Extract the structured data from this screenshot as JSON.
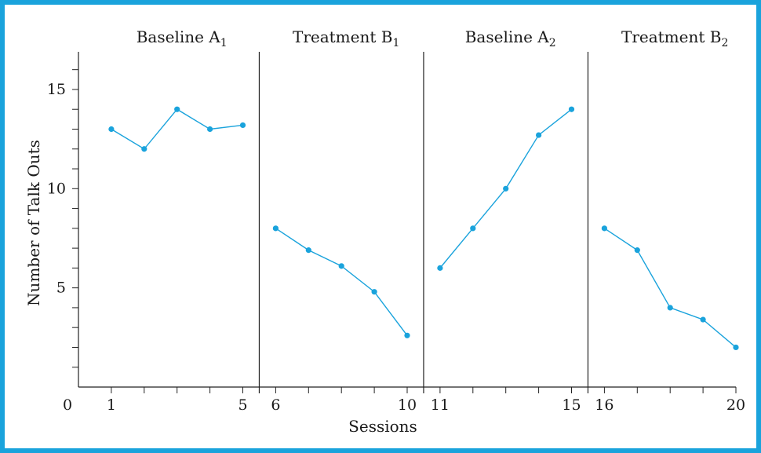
{
  "chart_data": {
    "type": "line",
    "xlabel": "Sessions",
    "ylabel": "Number of Talk Outs",
    "xlim": [
      0,
      20
    ],
    "ylim": [
      0,
      17
    ],
    "x_ticks": [
      1,
      2,
      3,
      4,
      5,
      6,
      7,
      8,
      9,
      10,
      11,
      12,
      13,
      14,
      15,
      16,
      17,
      18,
      19,
      20
    ],
    "x_tick_labels": [
      {
        "x": 0,
        "label": "0"
      },
      {
        "x": 1,
        "label": "1"
      },
      {
        "x": 5,
        "label": "5"
      },
      {
        "x": 6,
        "label": "6"
      },
      {
        "x": 10,
        "label": "10"
      },
      {
        "x": 11,
        "label": "11"
      },
      {
        "x": 15,
        "label": "15"
      },
      {
        "x": 16,
        "label": "16"
      },
      {
        "x": 20,
        "label": "20"
      }
    ],
    "y_ticks": [
      1,
      2,
      3,
      4,
      5,
      6,
      7,
      8,
      9,
      10,
      11,
      12,
      13,
      14,
      15,
      16
    ],
    "y_tick_labels": [
      {
        "y": 5,
        "label": "5"
      },
      {
        "y": 10,
        "label": "10"
      },
      {
        "y": 15,
        "label": "15"
      }
    ],
    "phase_dividers": [
      5.5,
      10.5,
      15.5
    ],
    "grid": false,
    "series": [
      {
        "phase": "Baseline",
        "letter": "A",
        "subscript": "1",
        "x": [
          1,
          2,
          3,
          4,
          5
        ],
        "values": [
          13,
          12,
          14,
          13,
          13.2
        ]
      },
      {
        "phase": "Treatment",
        "letter": "B",
        "subscript": "1",
        "x": [
          6,
          7,
          8,
          9,
          10
        ],
        "values": [
          8,
          6.9,
          6.1,
          4.8,
          2.6
        ]
      },
      {
        "phase": "Baseline",
        "letter": "A",
        "subscript": "2",
        "x": [
          11,
          12,
          13,
          14,
          15
        ],
        "values": [
          6,
          8,
          10,
          12.7,
          14
        ]
      },
      {
        "phase": "Treatment",
        "letter": "B",
        "subscript": "2",
        "x": [
          16,
          17,
          18,
          19,
          20
        ],
        "values": [
          8,
          6.9,
          4,
          3.4,
          2
        ]
      }
    ]
  },
  "colors": {
    "line": "#1aa3dc",
    "marker": "#1aa3dc",
    "axis": "#222222",
    "border": "#1aa3dc"
  }
}
